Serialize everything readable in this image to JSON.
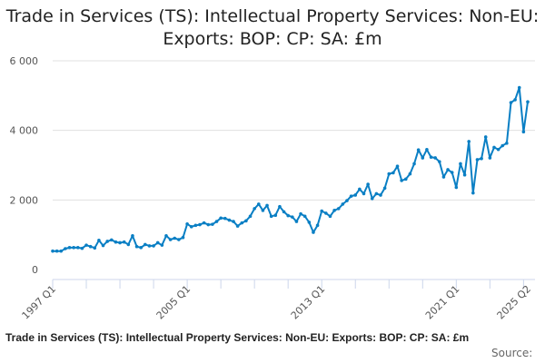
{
  "chart_data": {
    "type": "line",
    "title": "Trade in Services (TS): Intellectual Property Services: Non-EU: Exports: BOP: CP: SA: £m",
    "xlabel": "",
    "ylabel": "",
    "ylim": [
      0,
      6000
    ],
    "yticks": [
      0,
      2000,
      4000,
      6000
    ],
    "ytick_labels": [
      "0",
      "2 000",
      "4 000",
      "6 000"
    ],
    "x_start": "1997 Q1",
    "x_end": "2025 Q2",
    "xtick_labels": [
      {
        "label": "1997 Q1",
        "index": 0
      },
      {
        "label": "2005 Q1",
        "index": 32
      },
      {
        "label": "2013 Q1",
        "index": 64
      },
      {
        "label": "2021 Q1",
        "index": 96
      },
      {
        "label": "2025 Q2",
        "index": 113
      }
    ],
    "grid": true,
    "line_color": "#0a7fc4",
    "series": [
      {
        "name": "Intellectual Property Services: Non-EU: Exports",
        "values": [
          530,
          530,
          530,
          600,
          630,
          630,
          630,
          610,
          700,
          660,
          620,
          840,
          690,
          810,
          850,
          790,
          770,
          790,
          720,
          970,
          660,
          630,
          720,
          680,
          680,
          770,
          700,
          970,
          860,
          900,
          860,
          920,
          1310,
          1230,
          1270,
          1290,
          1340,
          1290,
          1300,
          1380,
          1480,
          1470,
          1420,
          1380,
          1250,
          1340,
          1400,
          1530,
          1750,
          1880,
          1700,
          1840,
          1530,
          1560,
          1810,
          1660,
          1550,
          1510,
          1380,
          1600,
          1530,
          1360,
          1070,
          1270,
          1680,
          1620,
          1530,
          1700,
          1750,
          1880,
          1980,
          2110,
          2140,
          2310,
          2180,
          2450,
          2040,
          2180,
          2140,
          2340,
          2750,
          2780,
          2970,
          2560,
          2600,
          2750,
          3040,
          3440,
          3210,
          3450,
          3230,
          3210,
          3100,
          2660,
          2870,
          2790,
          2360,
          3040,
          2720,
          3680,
          2200,
          3160,
          3190,
          3810,
          3210,
          3510,
          3450,
          3560,
          3630,
          4800,
          4880,
          5230,
          3960,
          4820
        ]
      }
    ]
  },
  "footer": {
    "series_title": "Trade in Services (TS): Intellectual Property Services: Non-EU: Exports: BOP: CP: SA: £m",
    "source_label": "Source:"
  }
}
